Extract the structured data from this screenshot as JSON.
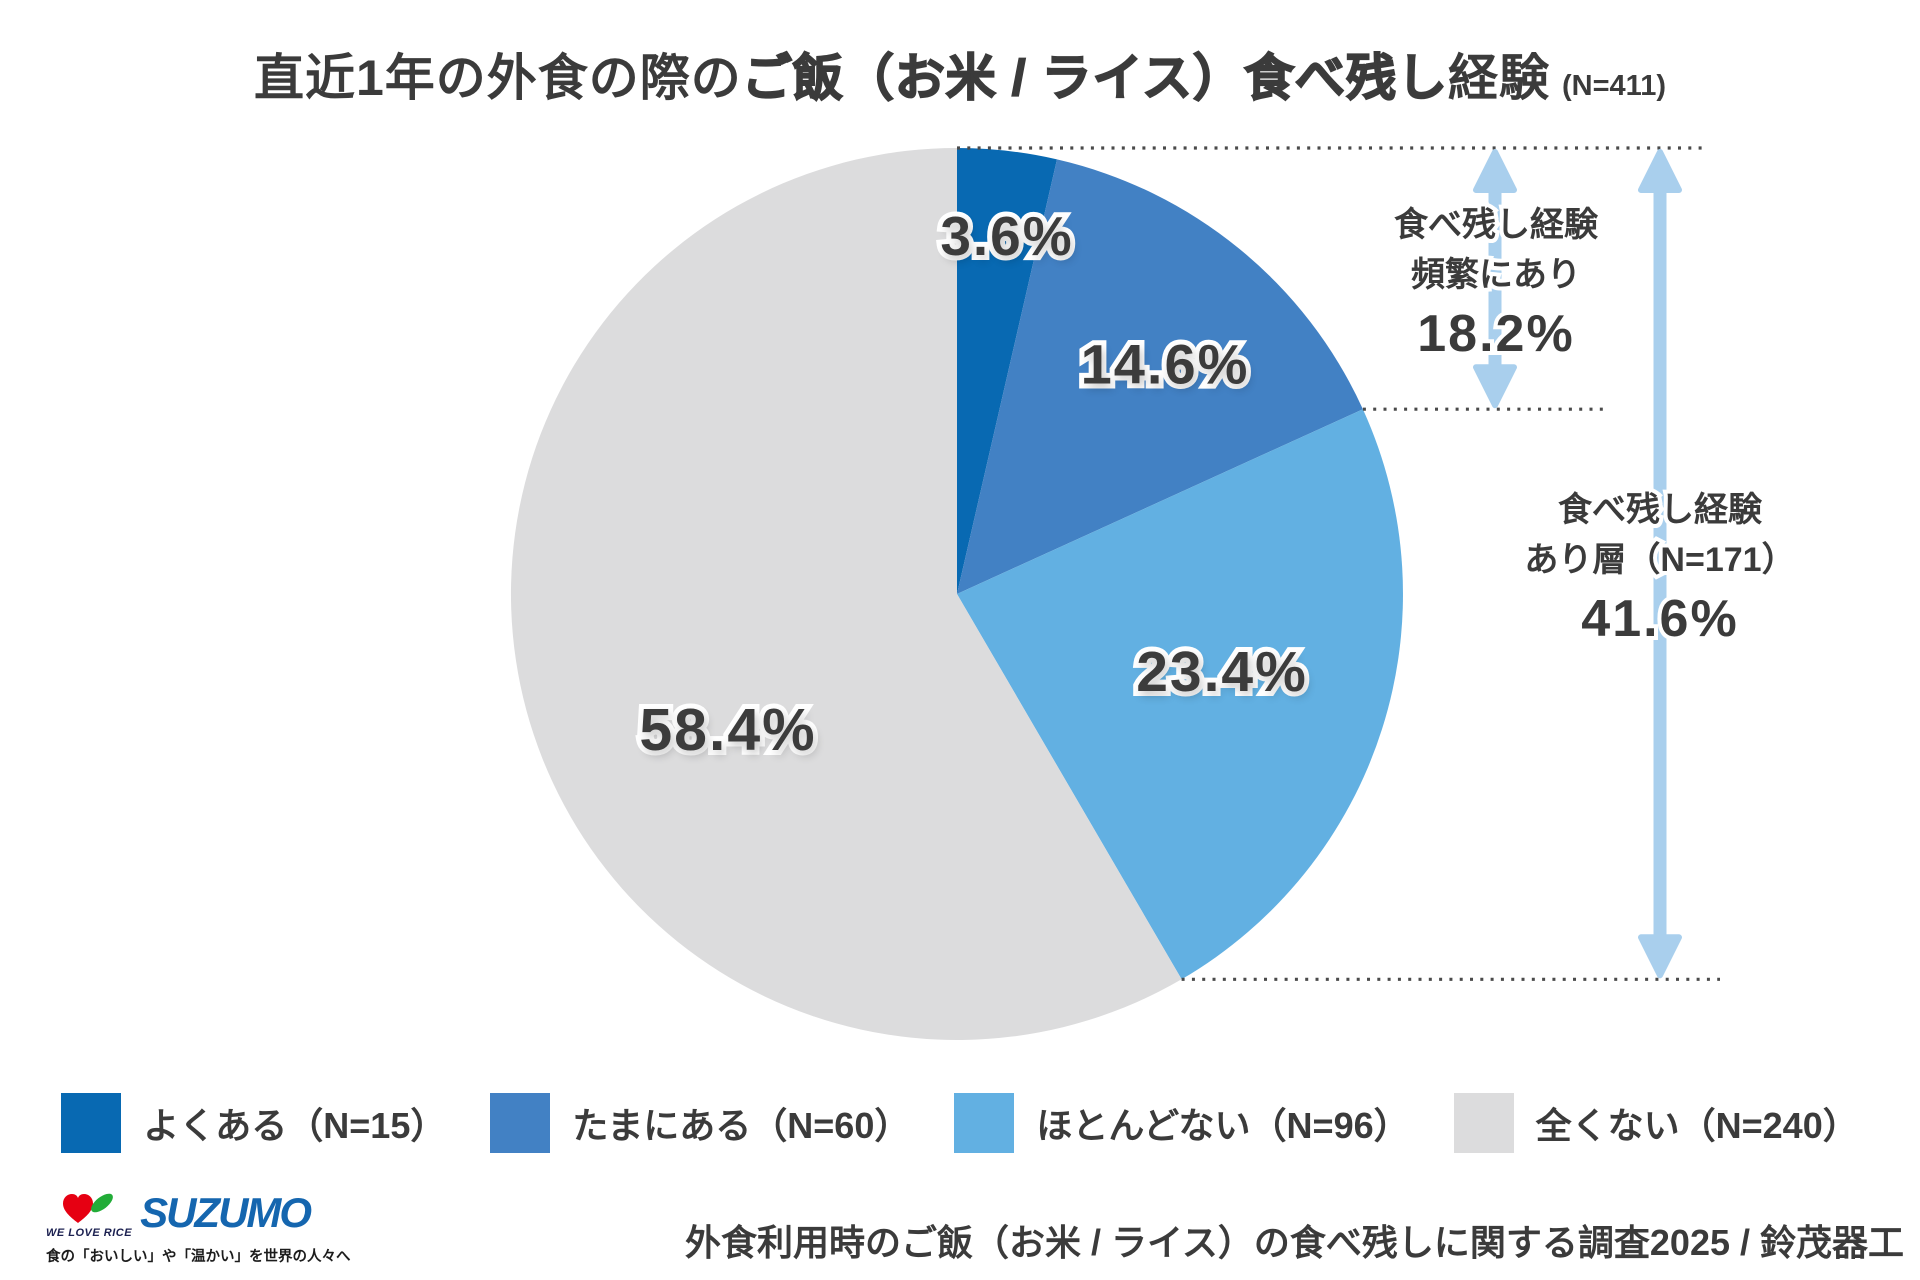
{
  "title": {
    "part1": "直近1年の外食の際の",
    "part2": "ご飯（お米 / ライス）食べ残し",
    "part3": "経験",
    "sample": "(N=411)"
  },
  "chart_data": {
    "type": "pie",
    "title": "直近1年の外食の際のご飯（お米 / ライス）食べ残し経験",
    "sample_label": "(N=411)",
    "sample_size": 411,
    "start_angle_deg": 0,
    "direction": "clockwise",
    "categories": [
      "よくある",
      "たまにある",
      "ほとんどない",
      "全くない"
    ],
    "values": [
      3.6,
      14.6,
      23.4,
      58.4
    ],
    "counts": [
      15,
      60,
      96,
      240
    ],
    "colors": [
      "#0869B2",
      "#4281C4",
      "#62B0E2",
      "#DCDCDD"
    ],
    "labels": [
      "3.6%",
      "14.6%",
      "23.4%",
      "58.4%"
    ],
    "annotations": [
      {
        "label": "食べ残し経験 頻繁にあり",
        "value": 18.2,
        "display": "18.2%",
        "covers": [
          "よくある",
          "たまにある"
        ]
      },
      {
        "label": "食べ残し経験 あり層（N=171）",
        "value": 41.6,
        "display": "41.6%",
        "covers": [
          "よくある",
          "たまにある",
          "ほとんどない"
        ]
      }
    ],
    "legend_position": "bottom",
    "style": {
      "arrow_color": "#A9CFED",
      "dotted_line_color": "#4A4A4A",
      "label_text_color": "#3C3C3C"
    }
  },
  "annotations": {
    "frequent": {
      "line1": "食べ残し経験",
      "line2": "頻繁にあり",
      "value": "18.2%"
    },
    "any": {
      "line1": "食べ残し経験",
      "line2": "あり層（N=171）",
      "value": "41.6%"
    }
  },
  "legend": {
    "items": [
      {
        "label": "よくある（N=15）",
        "color": "#0869B2"
      },
      {
        "label": "たまにある（N=60）",
        "color": "#4281C4"
      },
      {
        "label": "ほとんどない（N=96）",
        "color": "#62B0E2"
      },
      {
        "label": "全くない（N=240）",
        "color": "#DCDCDD"
      }
    ]
  },
  "footer": {
    "logo": {
      "we_love_rice": "WE LOVE RICE",
      "brand": "SUZUMO",
      "tagline": "食の「おいしい」や「温かい」を世界の人々へ"
    },
    "source": "外食利用時のご飯（お米 / ライス）の食べ残しに関する調査2025 / 鈴茂器工"
  }
}
